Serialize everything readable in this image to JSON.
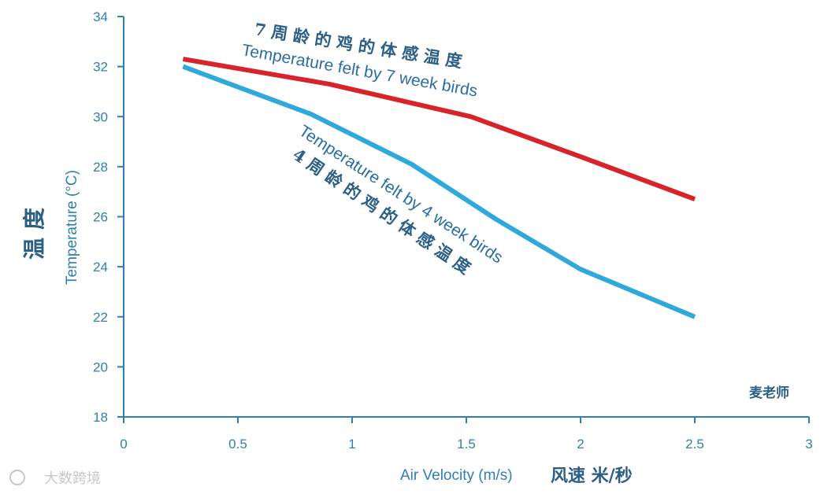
{
  "chart_data": {
    "type": "line",
    "title": "",
    "xlabel": "Air Velocity (m/s)",
    "xlabel_cn": "风速 米/秒",
    "ylabel": "Temperature (°C)",
    "ylabel_cn": "温度",
    "xlim": [
      0,
      3
    ],
    "ylim": [
      18,
      34
    ],
    "x_ticks": [
      "0",
      "0.5",
      "1",
      "1.5",
      "2",
      "2.5",
      "3"
    ],
    "y_ticks": [
      "18",
      "20",
      "22",
      "24",
      "26",
      "28",
      "30",
      "32",
      "34"
    ],
    "grid": false,
    "series": [
      {
        "name": "Temperature felt by 7 week birds",
        "name_cn": "7周龄的鸡的体感温度",
        "color": "#d8232a",
        "points": [
          [
            0.26,
            32.3
          ],
          [
            0.9,
            31.3
          ],
          [
            1.52,
            30.0
          ],
          [
            2.0,
            28.4
          ],
          [
            2.5,
            26.7
          ]
        ]
      },
      {
        "name": "Temperature felt by 4 week birds",
        "name_cn": "4周龄的鸡的体感温度",
        "color": "#2fa8dc",
        "points": [
          [
            0.26,
            32.0
          ],
          [
            0.82,
            30.1
          ],
          [
            1.26,
            28.1
          ],
          [
            1.63,
            25.9
          ],
          [
            2.0,
            23.9
          ],
          [
            2.5,
            22.0
          ]
        ]
      }
    ]
  },
  "signature": "麦老师",
  "watermark": "大数跨境"
}
